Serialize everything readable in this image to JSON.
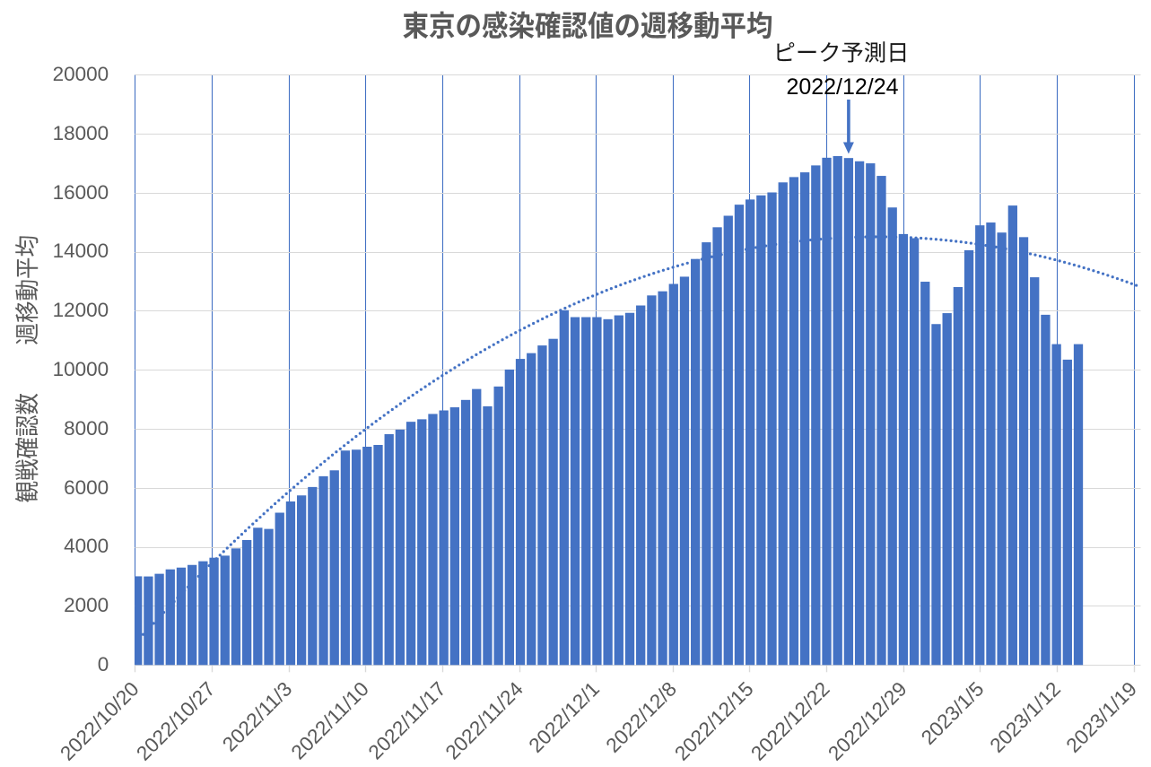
{
  "chart_data": {
    "type": "bar",
    "title": "東京の感染確認値の週移動平均",
    "ylabel": "観戦確認数　週移動平均",
    "xlabel": "",
    "categories": [
      "2022/10/20",
      "2022/10/21",
      "2022/10/22",
      "2022/10/23",
      "2022/10/24",
      "2022/10/25",
      "2022/10/26",
      "2022/10/27",
      "2022/10/28",
      "2022/10/29",
      "2022/10/30",
      "2022/10/31",
      "2022/11/1",
      "2022/11/2",
      "2022/11/3",
      "2022/11/4",
      "2022/11/5",
      "2022/11/6",
      "2022/11/7",
      "2022/11/8",
      "2022/11/9",
      "2022/11/10",
      "2022/11/11",
      "2022/11/12",
      "2022/11/13",
      "2022/11/14",
      "2022/11/15",
      "2022/11/16",
      "2022/11/17",
      "2022/11/18",
      "2022/11/19",
      "2022/11/20",
      "2022/11/21",
      "2022/11/22",
      "2022/11/23",
      "2022/11/24",
      "2022/11/25",
      "2022/11/26",
      "2022/11/27",
      "2022/11/28",
      "2022/11/29",
      "2022/11/30",
      "2022/12/1",
      "2022/12/2",
      "2022/12/3",
      "2022/12/4",
      "2022/12/5",
      "2022/12/6",
      "2022/12/7",
      "2022/12/8",
      "2022/12/9",
      "2022/12/10",
      "2022/12/11",
      "2022/12/12",
      "2022/12/13",
      "2022/12/14",
      "2022/12/15",
      "2022/12/16",
      "2022/12/17",
      "2022/12/18",
      "2022/12/19",
      "2022/12/20",
      "2022/12/21",
      "2022/12/22",
      "2022/12/23",
      "2022/12/24",
      "2022/12/25",
      "2022/12/26",
      "2022/12/27",
      "2022/12/28",
      "2022/12/29",
      "2022/12/30",
      "2022/12/31",
      "2023/1/1",
      "2023/1/2",
      "2023/1/3",
      "2023/1/4",
      "2023/1/5",
      "2023/1/6",
      "2023/1/7",
      "2023/1/8",
      "2023/1/9",
      "2023/1/10",
      "2023/1/11",
      "2023/1/12",
      "2023/1/13",
      "2023/1/14"
    ],
    "values": [
      3005,
      3000,
      3090,
      3240,
      3300,
      3390,
      3515,
      3635,
      3705,
      3950,
      4235,
      4650,
      4610,
      5160,
      5540,
      5745,
      6030,
      6395,
      6595,
      7265,
      7295,
      7395,
      7455,
      7820,
      7975,
      8240,
      8325,
      8505,
      8625,
      8730,
      8980,
      9350,
      8765,
      9435,
      10010,
      10370,
      10565,
      10825,
      11050,
      12020,
      11785,
      11785,
      11785,
      11715,
      11845,
      11930,
      12180,
      12520,
      12660,
      12910,
      13155,
      13755,
      14320,
      14830,
      15220,
      15595,
      15770,
      15910,
      16010,
      16350,
      16530,
      16690,
      16925,
      17185,
      17240,
      17175,
      17065,
      16995,
      16570,
      15500,
      14600,
      14460,
      12985,
      11550,
      11920,
      12805,
      14050,
      14895,
      14990,
      14650,
      15565,
      14495,
      13135,
      11865,
      10870,
      10345,
      10870
    ],
    "ylim": [
      0,
      20000
    ],
    "ytick_step": 2000,
    "ytick_labels": [
      "0",
      "2000",
      "4000",
      "6000",
      "8000",
      "10000",
      "12000",
      "14000",
      "16000",
      "18000",
      "20000"
    ],
    "xtick_labels": [
      "2022/10/20",
      "2022/10/27",
      "2022/11/3",
      "2022/11/10",
      "2022/11/17",
      "2022/11/24",
      "2022/12/1",
      "2022/12/8",
      "2022/12/15",
      "2022/12/22",
      "2022/12/29",
      "2023/1/5",
      "2023/1/12",
      "2023/1/19"
    ],
    "grid": {
      "horizontal": true,
      "vertical": true
    },
    "legend_position": "none",
    "trendline": {
      "style": "dotted",
      "sampling": "one value per day, day 0 = first category",
      "values": [
        727,
        1135,
        1536,
        1931,
        2319,
        2702,
        3078,
        3448,
        3812,
        4170,
        4522,
        4867,
        5207,
        5540,
        5867,
        6188,
        6503,
        6811,
        7114,
        7410,
        7700,
        7984,
        8263,
        8534,
        8800,
        9060,
        9314,
        9561,
        9802,
        10038,
        10267,
        10490,
        10707,
        10918,
        11123,
        11322,
        11515,
        11702,
        11882,
        12057,
        12226,
        12388,
        12545,
        12695,
        12840,
        12978,
        13110,
        13237,
        13357,
        13471,
        13580,
        13682,
        13778,
        13869,
        13953,
        14031,
        14104,
        14170,
        14231,
        14285,
        14334,
        14376,
        14413,
        14443,
        14468,
        14486,
        14499,
        14506,
        14507,
        14502,
        14491,
        14474,
        14451,
        14422,
        14387,
        14347,
        14300,
        14248,
        14189,
        14125,
        14055,
        13979,
        13897,
        13809,
        13716,
        13616,
        13511,
        13399,
        13282,
        13159,
        13030,
        12896
      ]
    },
    "annotation": {
      "label": "ピーク予測日",
      "date": "2022/12/24",
      "arrow": "down",
      "target_category": "2022/12/24"
    },
    "colors": {
      "bar": "#4472C4",
      "trendline": "#4472C4",
      "vertical_grid": "#4472C4",
      "horizontal_grid": "#D9D9D9",
      "axis_text": "#595959",
      "title_text": "#595959",
      "annotation_text": "#000000",
      "background": "#FFFFFF"
    }
  }
}
